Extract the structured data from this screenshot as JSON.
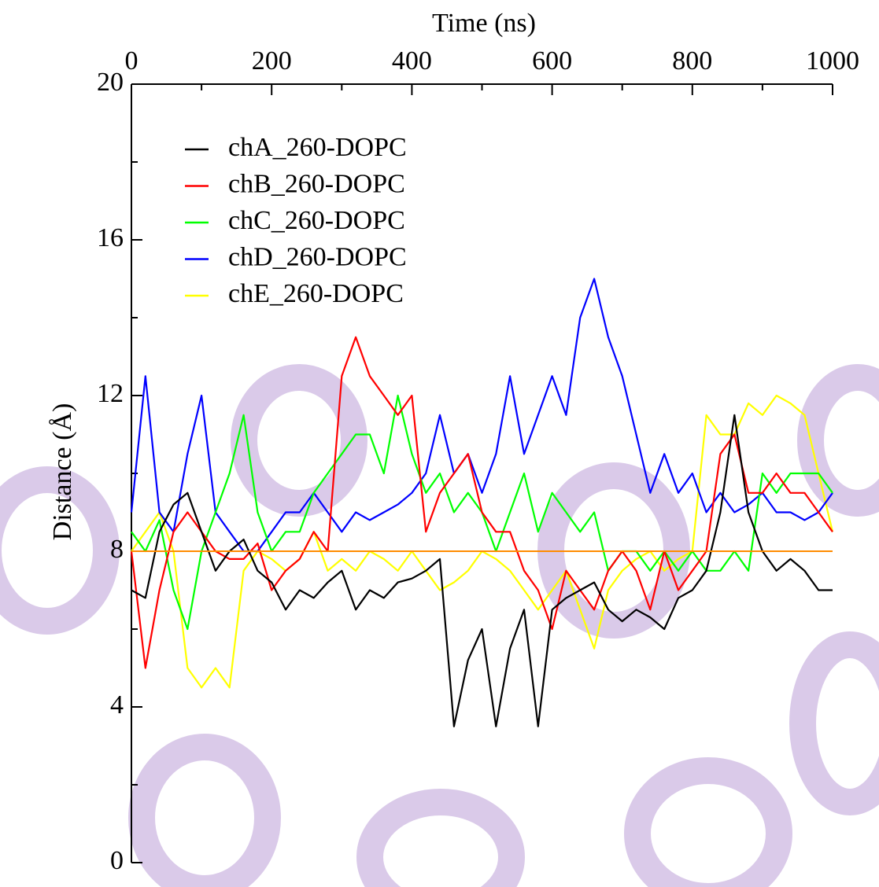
{
  "chart_data": {
    "type": "line",
    "xlabel": "Time (ns)",
    "ylabel": "Distance (Å)",
    "x": [
      0,
      20,
      40,
      60,
      80,
      100,
      120,
      140,
      160,
      180,
      200,
      220,
      240,
      260,
      280,
      300,
      320,
      340,
      360,
      380,
      400,
      420,
      440,
      460,
      480,
      500,
      520,
      540,
      560,
      580,
      600,
      620,
      640,
      660,
      680,
      700,
      720,
      740,
      760,
      780,
      800,
      820,
      840,
      860,
      880,
      900,
      920,
      940,
      960,
      980,
      1000
    ],
    "xlim": [
      0,
      1000
    ],
    "xticks": [
      0,
      200,
      400,
      600,
      800,
      1000
    ],
    "xminorticks": [
      100,
      300,
      500,
      700,
      900
    ],
    "ylim": [
      0,
      20
    ],
    "yticks": [
      0,
      4,
      8,
      12,
      16,
      20
    ],
    "yminorticks": [
      2,
      6,
      10,
      14,
      18
    ],
    "reference_line": {
      "value": 8,
      "color": "#ff8c00"
    },
    "legend": "upper left",
    "series": [
      {
        "name": "chA_260-DOPC",
        "color": "#000000",
        "values": [
          7,
          6.8,
          8.5,
          9.2,
          9.5,
          8.5,
          7.5,
          8,
          8.3,
          7.5,
          7.2,
          6.5,
          7,
          6.8,
          7.2,
          7.5,
          6.5,
          7,
          6.8,
          7.2,
          7.3,
          7.5,
          7.8,
          3.5,
          5.2,
          6,
          3.5,
          5.5,
          6.5,
          3.5,
          6.5,
          6.8,
          7,
          7.2,
          6.5,
          6.2,
          6.5,
          6.3,
          6,
          6.8,
          7,
          7.5,
          9,
          11.5,
          9,
          8,
          7.5,
          7.8,
          7.5,
          7,
          7
        ]
      },
      {
        "name": "chB_260-DOPC",
        "color": "#ff0000",
        "values": [
          8,
          5,
          7,
          8.5,
          9,
          8.5,
          8,
          7.8,
          7.8,
          8.2,
          7,
          7.5,
          7.8,
          8.5,
          8,
          12.5,
          13.5,
          12.5,
          12,
          11.5,
          12,
          8.5,
          9.5,
          10,
          10.5,
          9,
          8.5,
          8.5,
          7.5,
          7,
          6,
          7.5,
          7,
          6.5,
          7.5,
          8,
          7.5,
          6.5,
          8,
          7,
          7.5,
          8,
          10.5,
          11,
          9.5,
          9.5,
          10,
          9.5,
          9.5,
          9,
          8.5
        ]
      },
      {
        "name": "chC_260-DOPC",
        "color": "#00ff00",
        "values": [
          8.5,
          8,
          8.8,
          7,
          6,
          8,
          9,
          10,
          11.5,
          9,
          8,
          8.5,
          8.5,
          9.5,
          10,
          10.5,
          11,
          11,
          10,
          12,
          10.5,
          9.5,
          10,
          9,
          9.5,
          9,
          8,
          9,
          10,
          8.5,
          9.5,
          9,
          8.5,
          9,
          7.5,
          8,
          8,
          7.5,
          8,
          7.5,
          8,
          7.5,
          7.5,
          8,
          7.5,
          10,
          9.5,
          10,
          10,
          10,
          9.5
        ]
      },
      {
        "name": "chD_260-DOPC",
        "color": "#0000ff",
        "values": [
          9,
          12.5,
          9,
          8.5,
          10.5,
          12,
          9,
          8.5,
          8,
          8,
          8.5,
          9,
          9,
          9.5,
          9,
          8.5,
          9,
          8.8,
          9,
          9.2,
          9.5,
          10,
          11.5,
          10,
          10.5,
          9.5,
          10.5,
          12.5,
          10.5,
          11.5,
          12.5,
          11.5,
          14,
          15,
          13.5,
          12.5,
          11,
          9.5,
          10.5,
          9.5,
          10,
          9,
          9.5,
          9,
          9.2,
          9.5,
          9,
          9,
          8.8,
          9,
          9.5
        ]
      },
      {
        "name": "chE_260-DOPC",
        "color": "#ffff00",
        "values": [
          8,
          8.5,
          9,
          8,
          5,
          4.5,
          5,
          4.5,
          7.5,
          8,
          7.8,
          7.5,
          7.8,
          8.5,
          7.5,
          7.8,
          7.5,
          8,
          7.8,
          7.5,
          8,
          7.5,
          7,
          7.2,
          7.5,
          8,
          7.8,
          7.5,
          7,
          6.5,
          7,
          7.5,
          6.5,
          5.5,
          7,
          7.5,
          7.8,
          8,
          7.5,
          7.8,
          8,
          11.5,
          11,
          11,
          11.8,
          11.5,
          12,
          11.8,
          11.5,
          10,
          8.5
        ]
      }
    ]
  }
}
